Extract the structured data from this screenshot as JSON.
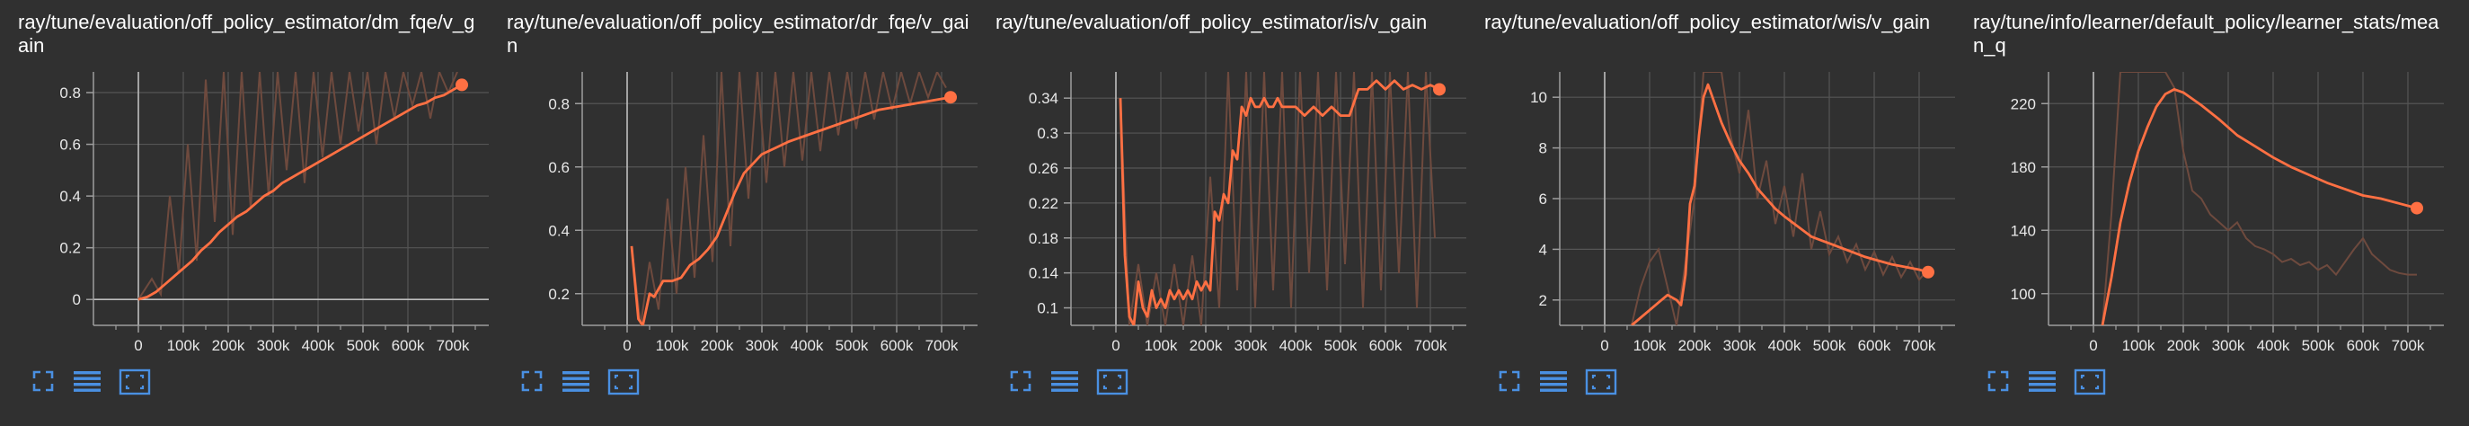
{
  "theme": {
    "background": "#303030",
    "line_color": "#ff7043",
    "raw_line_color": "#6e4a3e",
    "axis_color": "#9e9e9e",
    "grid_color": "#555555",
    "icon_color": "#4a90e2"
  },
  "toolbar_icons": [
    "fullscreen-icon",
    "toggle-y-axis-log-icon",
    "fit-domain-icon"
  ],
  "chart_data": [
    {
      "type": "line",
      "title": "ray/tune/evaluation/off_policy_estimator/dm_fqe/v_gain",
      "xlabel": "",
      "ylabel": "",
      "xlim": [
        -100000,
        780000
      ],
      "ylim": [
        -0.1,
        0.88
      ],
      "x_ticks": [
        0,
        100000,
        200000,
        300000,
        400000,
        500000,
        600000,
        700000
      ],
      "x_tick_labels": [
        "0",
        "100k",
        "200k",
        "300k",
        "400k",
        "500k",
        "600k",
        "700k"
      ],
      "y_ticks": [
        0,
        0.2,
        0.4,
        0.6,
        0.8
      ],
      "y_tick_labels": [
        "0",
        "0.2",
        "0.4",
        "0.6",
        "0.8"
      ],
      "grid": true,
      "series": [
        {
          "style": "smoothed",
          "x": [
            0,
            20000,
            40000,
            60000,
            80000,
            100000,
            120000,
            140000,
            160000,
            180000,
            200000,
            220000,
            240000,
            260000,
            280000,
            300000,
            320000,
            340000,
            360000,
            380000,
            400000,
            420000,
            440000,
            460000,
            480000,
            500000,
            520000,
            540000,
            560000,
            580000,
            600000,
            620000,
            640000,
            660000,
            680000,
            700000,
            720000
          ],
          "y": [
            0.0,
            0.01,
            0.03,
            0.06,
            0.09,
            0.12,
            0.15,
            0.19,
            0.22,
            0.26,
            0.29,
            0.32,
            0.34,
            0.37,
            0.4,
            0.42,
            0.45,
            0.47,
            0.49,
            0.51,
            0.53,
            0.55,
            0.57,
            0.59,
            0.61,
            0.63,
            0.65,
            0.67,
            0.69,
            0.71,
            0.73,
            0.75,
            0.76,
            0.78,
            0.79,
            0.81,
            0.83
          ]
        },
        {
          "style": "raw",
          "x": [
            0,
            30000,
            50000,
            70000,
            90000,
            110000,
            130000,
            150000,
            170000,
            190000,
            210000,
            230000,
            250000,
            270000,
            290000,
            310000,
            330000,
            350000,
            370000,
            390000,
            410000,
            430000,
            450000,
            470000,
            490000,
            510000,
            530000,
            550000,
            570000,
            590000,
            610000,
            630000,
            650000,
            670000,
            690000,
            710000
          ],
          "y": [
            0.0,
            0.08,
            0.02,
            0.4,
            0.1,
            0.6,
            0.15,
            0.85,
            0.3,
            0.88,
            0.25,
            0.88,
            0.35,
            0.88,
            0.4,
            0.88,
            0.5,
            0.88,
            0.45,
            0.88,
            0.55,
            0.88,
            0.6,
            0.88,
            0.65,
            0.88,
            0.6,
            0.88,
            0.7,
            0.88,
            0.75,
            0.88,
            0.7,
            0.88,
            0.8,
            0.88
          ]
        }
      ]
    },
    {
      "type": "line",
      "title": "ray/tune/evaluation/off_policy_estimator/dr_fqe/v_gain",
      "xlabel": "",
      "ylabel": "",
      "xlim": [
        -100000,
        780000
      ],
      "ylim": [
        0.1,
        0.9
      ],
      "x_ticks": [
        0,
        100000,
        200000,
        300000,
        400000,
        500000,
        600000,
        700000
      ],
      "x_tick_labels": [
        "0",
        "100k",
        "200k",
        "300k",
        "400k",
        "500k",
        "600k",
        "700k"
      ],
      "y_ticks": [
        0.2,
        0.4,
        0.6,
        0.8
      ],
      "y_tick_labels": [
        "0.2",
        "0.4",
        "0.6",
        "0.8"
      ],
      "grid": true,
      "series": [
        {
          "style": "smoothed",
          "x": [
            10000,
            25000,
            35000,
            50000,
            60000,
            80000,
            100000,
            120000,
            140000,
            160000,
            180000,
            200000,
            220000,
            240000,
            260000,
            280000,
            300000,
            330000,
            360000,
            400000,
            440000,
            480000,
            520000,
            560000,
            600000,
            640000,
            680000,
            720000
          ],
          "y": [
            0.35,
            0.12,
            0.1,
            0.2,
            0.19,
            0.24,
            0.24,
            0.25,
            0.29,
            0.31,
            0.34,
            0.38,
            0.45,
            0.52,
            0.58,
            0.61,
            0.64,
            0.66,
            0.68,
            0.7,
            0.72,
            0.74,
            0.76,
            0.78,
            0.79,
            0.8,
            0.81,
            0.82
          ]
        },
        {
          "style": "raw",
          "x": [
            10000,
            30000,
            50000,
            70000,
            90000,
            110000,
            130000,
            150000,
            170000,
            190000,
            210000,
            230000,
            250000,
            270000,
            290000,
            310000,
            330000,
            350000,
            370000,
            390000,
            410000,
            430000,
            450000,
            470000,
            490000,
            510000,
            530000,
            550000,
            570000,
            590000,
            610000,
            630000,
            650000,
            670000,
            690000,
            710000
          ],
          "y": [
            0.35,
            0.1,
            0.3,
            0.15,
            0.5,
            0.2,
            0.6,
            0.25,
            0.7,
            0.3,
            0.9,
            0.35,
            0.9,
            0.5,
            0.9,
            0.55,
            0.9,
            0.6,
            0.9,
            0.62,
            0.9,
            0.65,
            0.9,
            0.7,
            0.9,
            0.72,
            0.9,
            0.75,
            0.9,
            0.78,
            0.9,
            0.8,
            0.9,
            0.82,
            0.9,
            0.85
          ]
        }
      ]
    },
    {
      "type": "line",
      "title": "ray/tune/evaluation/off_policy_estimator/is/v_gain",
      "xlabel": "",
      "ylabel": "",
      "xlim": [
        -100000,
        780000
      ],
      "ylim": [
        0.08,
        0.37
      ],
      "x_ticks": [
        0,
        100000,
        200000,
        300000,
        400000,
        500000,
        600000,
        700000
      ],
      "x_tick_labels": [
        "0",
        "100k",
        "200k",
        "300k",
        "400k",
        "500k",
        "600k",
        "700k"
      ],
      "y_ticks": [
        0.1,
        0.14,
        0.18,
        0.22,
        0.26,
        0.3,
        0.34
      ],
      "y_tick_labels": [
        "0.1",
        "0.14",
        "0.18",
        "0.22",
        "0.26",
        "0.3",
        "0.34"
      ],
      "grid": true,
      "series": [
        {
          "style": "smoothed",
          "x": [
            10000,
            20000,
            30000,
            40000,
            50000,
            60000,
            70000,
            80000,
            90000,
            100000,
            110000,
            120000,
            130000,
            140000,
            150000,
            160000,
            170000,
            180000,
            190000,
            200000,
            210000,
            220000,
            230000,
            240000,
            250000,
            260000,
            270000,
            280000,
            290000,
            300000,
            310000,
            320000,
            330000,
            340000,
            350000,
            360000,
            370000,
            380000,
            400000,
            420000,
            440000,
            460000,
            480000,
            500000,
            520000,
            540000,
            560000,
            580000,
            600000,
            620000,
            640000,
            660000,
            680000,
            700000,
            720000
          ],
          "y": [
            0.34,
            0.16,
            0.09,
            0.08,
            0.13,
            0.1,
            0.09,
            0.12,
            0.1,
            0.11,
            0.1,
            0.12,
            0.11,
            0.12,
            0.11,
            0.12,
            0.11,
            0.13,
            0.12,
            0.13,
            0.12,
            0.21,
            0.2,
            0.23,
            0.22,
            0.28,
            0.27,
            0.33,
            0.32,
            0.34,
            0.33,
            0.33,
            0.34,
            0.33,
            0.33,
            0.34,
            0.33,
            0.33,
            0.33,
            0.32,
            0.33,
            0.32,
            0.33,
            0.32,
            0.32,
            0.35,
            0.35,
            0.36,
            0.35,
            0.36,
            0.35,
            0.355,
            0.35,
            0.355,
            0.35
          ]
        },
        {
          "style": "raw",
          "x": [
            10000,
            30000,
            50000,
            70000,
            90000,
            110000,
            130000,
            150000,
            170000,
            190000,
            210000,
            230000,
            250000,
            270000,
            290000,
            310000,
            330000,
            350000,
            370000,
            390000,
            410000,
            430000,
            450000,
            470000,
            490000,
            510000,
            530000,
            550000,
            570000,
            590000,
            610000,
            630000,
            650000,
            670000,
            690000,
            710000
          ],
          "y": [
            0.34,
            0.08,
            0.15,
            0.08,
            0.14,
            0.08,
            0.15,
            0.08,
            0.16,
            0.08,
            0.25,
            0.1,
            0.37,
            0.12,
            0.37,
            0.1,
            0.37,
            0.12,
            0.37,
            0.1,
            0.37,
            0.14,
            0.37,
            0.12,
            0.37,
            0.15,
            0.37,
            0.1,
            0.37,
            0.12,
            0.37,
            0.14,
            0.37,
            0.1,
            0.37,
            0.18
          ]
        }
      ]
    },
    {
      "type": "line",
      "title": "ray/tune/evaluation/off_policy_estimator/wis/v_gain",
      "xlabel": "",
      "ylabel": "",
      "xlim": [
        -100000,
        780000
      ],
      "ylim": [
        1.0,
        11.0
      ],
      "x_ticks": [
        0,
        100000,
        200000,
        300000,
        400000,
        500000,
        600000,
        700000
      ],
      "x_tick_labels": [
        "0",
        "100k",
        "200k",
        "300k",
        "400k",
        "500k",
        "600k",
        "700k"
      ],
      "y_ticks": [
        2,
        4,
        6,
        8,
        10
      ],
      "y_tick_labels": [
        "2",
        "4",
        "6",
        "8",
        "10"
      ],
      "grid": true,
      "series": [
        {
          "style": "smoothed",
          "x": [
            60000,
            80000,
            100000,
            120000,
            140000,
            160000,
            170000,
            180000,
            190000,
            200000,
            210000,
            220000,
            230000,
            240000,
            250000,
            260000,
            280000,
            300000,
            320000,
            340000,
            360000,
            380000,
            400000,
            430000,
            460000,
            490000,
            520000,
            550000,
            580000,
            610000,
            640000,
            670000,
            700000,
            720000
          ],
          "y": [
            1.0,
            1.3,
            1.6,
            1.9,
            2.2,
            2.0,
            1.8,
            3.0,
            5.8,
            6.5,
            8.5,
            10.0,
            10.5,
            10.0,
            9.5,
            9.0,
            8.2,
            7.5,
            7.0,
            6.4,
            6.0,
            5.6,
            5.3,
            4.9,
            4.5,
            4.3,
            4.1,
            3.9,
            3.7,
            3.55,
            3.4,
            3.3,
            3.2,
            3.1
          ]
        },
        {
          "style": "raw",
          "x": [
            60000,
            80000,
            100000,
            120000,
            140000,
            160000,
            180000,
            200000,
            220000,
            240000,
            260000,
            280000,
            300000,
            320000,
            340000,
            360000,
            380000,
            400000,
            420000,
            440000,
            460000,
            480000,
            500000,
            520000,
            540000,
            560000,
            580000,
            600000,
            620000,
            640000,
            660000,
            680000,
            700000,
            720000
          ],
          "y": [
            1.0,
            2.5,
            3.5,
            4.0,
            2.5,
            1.0,
            3.5,
            6.0,
            11.0,
            11.0,
            11.0,
            8.5,
            7.0,
            9.5,
            6.0,
            7.5,
            5.0,
            6.5,
            4.5,
            7.0,
            4.0,
            5.5,
            3.8,
            4.5,
            3.5,
            4.2,
            3.2,
            3.9,
            3.0,
            3.7,
            2.9,
            3.5,
            2.8,
            3.2
          ]
        }
      ]
    },
    {
      "type": "line",
      "title": "ray/tune/info/learner/default_policy/learner_stats/mean_q",
      "xlabel": "",
      "ylabel": "",
      "xlim": [
        -100000,
        780000
      ],
      "ylim": [
        80,
        240
      ],
      "x_ticks": [
        0,
        100000,
        200000,
        300000,
        400000,
        500000,
        600000,
        700000
      ],
      "x_tick_labels": [
        "0",
        "100k",
        "200k",
        "300k",
        "400k",
        "500k",
        "600k",
        "700k"
      ],
      "y_ticks": [
        100,
        140,
        180,
        220
      ],
      "y_tick_labels": [
        "100",
        "140",
        "180",
        "220"
      ],
      "grid": true,
      "series": [
        {
          "style": "smoothed",
          "x": [
            20000,
            40000,
            60000,
            80000,
            100000,
            120000,
            140000,
            160000,
            180000,
            200000,
            240000,
            280000,
            320000,
            360000,
            400000,
            440000,
            480000,
            520000,
            560000,
            600000,
            640000,
            680000,
            720000
          ],
          "y": [
            80,
            110,
            145,
            170,
            190,
            205,
            218,
            226,
            229,
            227,
            219,
            210,
            200,
            193,
            186,
            180,
            175,
            170,
            166,
            162,
            160,
            157,
            154
          ]
        },
        {
          "style": "raw",
          "x": [
            20000,
            40000,
            60000,
            80000,
            100000,
            120000,
            140000,
            160000,
            180000,
            200000,
            220000,
            240000,
            260000,
            280000,
            300000,
            320000,
            340000,
            360000,
            380000,
            400000,
            420000,
            440000,
            460000,
            480000,
            500000,
            520000,
            540000,
            560000,
            580000,
            600000,
            620000,
            640000,
            660000,
            680000,
            700000,
            720000
          ],
          "y": [
            80,
            150,
            240,
            240,
            240,
            240,
            240,
            240,
            230,
            190,
            165,
            160,
            150,
            145,
            140,
            145,
            135,
            130,
            128,
            125,
            120,
            122,
            118,
            120,
            115,
            118,
            112,
            120,
            128,
            135,
            125,
            120,
            115,
            113,
            112,
            112
          ]
        }
      ]
    }
  ]
}
